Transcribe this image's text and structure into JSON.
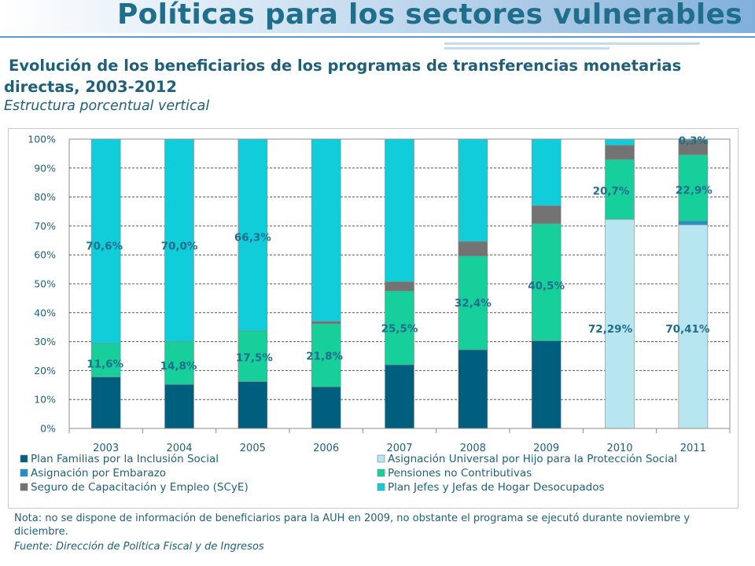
{
  "page": {
    "title": "Políticas para los sectores vulnerables"
  },
  "notes": {
    "nota": "Nota:  no se dispone de información de beneficiarios para la AUH en 2009, no obstante el programa se ejecutó durante noviembre y diciembre.",
    "fuente": "Fuente: Dirección de Política Fiscal y de Ingresos"
  },
  "colors": {
    "text": "#1f5f7a",
    "title": "#1f6e8c"
  },
  "chart_data": {
    "type": "bar",
    "stacked": true,
    "title": "Evolución de los beneficiarios de los programas de transferencias monetarias directas, 2003-2012",
    "subtitle": "Estructura porcentual vertical",
    "xlabel": "",
    "ylabel": "",
    "ylim": [
      0,
      100
    ],
    "yticks": [
      "0%",
      "10%",
      "20%",
      "30%",
      "40%",
      "50%",
      "60%",
      "70%",
      "80%",
      "90%",
      "100%"
    ],
    "grid": true,
    "legend_position": "bottom",
    "categories": [
      "2003",
      "2004",
      "2005",
      "2006",
      "2007",
      "2008",
      "2009",
      "2010",
      "2011"
    ],
    "series": [
      {
        "name": "Plan Familias por la Inclusión Social",
        "color": "#005f7f",
        "values": [
          17.8,
          15.2,
          16.2,
          14.4,
          22.0,
          27.2,
          30.3,
          0,
          0
        ]
      },
      {
        "name": "Asignación Universal por Hijo para la Protección Social",
        "color": "#b7e6f0",
        "values": [
          0,
          0,
          0,
          0,
          0,
          0,
          0,
          72.29,
          70.41
        ]
      },
      {
        "name": "Asignación por Embarazo",
        "color": "#1e90c8",
        "values": [
          0,
          0,
          0,
          0,
          0,
          0,
          0,
          0,
          1.3
        ]
      },
      {
        "name": "Pensiones no Contributivas",
        "color": "#17cf9a",
        "values": [
          11.6,
          14.8,
          17.5,
          21.8,
          25.5,
          32.4,
          40.5,
          20.7,
          22.9
        ]
      },
      {
        "name": "Seguro de Capacitación y Empleo (SCyE)",
        "color": "#737373",
        "values": [
          0,
          0,
          0,
          0.8,
          3.2,
          5.0,
          6.2,
          4.9,
          5.1
        ]
      },
      {
        "name": "Plan Jefes y Jefas de Hogar Desocupados",
        "color": "#11ccd9",
        "values": [
          70.6,
          70.0,
          66.3,
          63.0,
          49.3,
          35.4,
          23.0,
          2.1,
          0.3
        ]
      }
    ],
    "data_labels": [
      {
        "category": "2003",
        "value": 70.6,
        "text": "70,6%"
      },
      {
        "category": "2003",
        "value": 11.6,
        "text": "11,6%"
      },
      {
        "category": "2004",
        "value": 70.0,
        "text": "70,0%"
      },
      {
        "category": "2004",
        "value": 14.8,
        "text": "14,8%"
      },
      {
        "category": "2005",
        "value": 66.3,
        "text": "66,3%"
      },
      {
        "category": "2005",
        "value": 17.5,
        "text": "17,5%"
      },
      {
        "category": "2006",
        "value": 21.8,
        "text": "21,8%"
      },
      {
        "category": "2007",
        "value": 25.5,
        "text": "25,5%"
      },
      {
        "category": "2008",
        "value": 32.4,
        "text": "32,4%"
      },
      {
        "category": "2009",
        "value": 40.5,
        "text": "40,5%"
      },
      {
        "category": "2010",
        "value": 20.7,
        "text": "20,7%"
      },
      {
        "category": "2010",
        "value": 72.29,
        "text": "72,29%"
      },
      {
        "category": "2011",
        "value": 0.3,
        "text": "0,3%"
      },
      {
        "category": "2011",
        "value": 22.9,
        "text": "22,9%"
      },
      {
        "category": "2011",
        "value": 70.41,
        "text": "70,41%"
      }
    ]
  }
}
